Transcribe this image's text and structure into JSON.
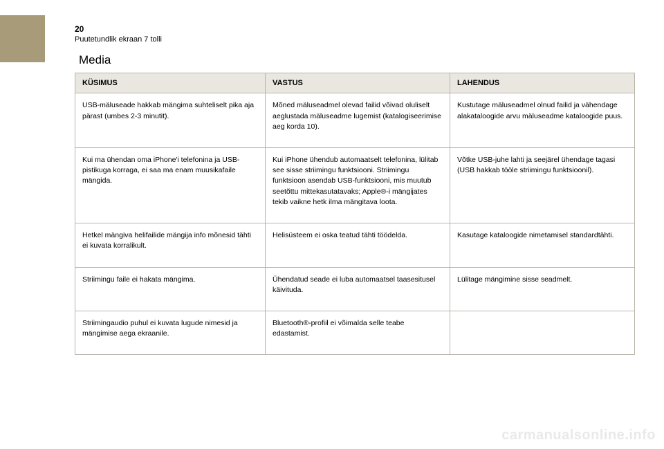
{
  "page": {
    "number": "20",
    "subtitle": "Puutetundlik ekraan 7 tolli",
    "section_title": "Media"
  },
  "table": {
    "columns": [
      "KÜSIMUS",
      "VASTUS",
      "LAHENDUS"
    ],
    "rows": [
      [
        "USB-mäluseade hakkab mängima suhteliselt pika aja pärast (umbes 2-3 minutit).",
        "Mõned mäluseadmel olevad failid võivad oluliselt aeglustada mäluseadme lugemist (katalogiseerimise aeg korda 10).",
        "Kustutage mäluseadmel olnud failid ja vähendage alakataloogide arvu mäluseadme kataloogide puus."
      ],
      [
        "Kui ma ühendan oma iPhone'i telefonina ja USB-pistikuga korraga, ei saa ma enam muusikafaile mängida.",
        "Kui iPhone ühendub automaatselt telefonina, lülitab see sisse striimingu funktsiooni. Striimingu funktsioon asendab USB-funktsiooni, mis muutub seetõttu mittekasutatavaks; Apple®-i mängijates tekib vaikne hetk ilma mängitava loota.",
        "Võtke USB-juhe lahti ja seejärel ühendage tagasi (USB hakkab tööle striimingu funktsioonil)."
      ],
      [
        "Hetkel mängiva helifailide mängija info mõnesid tähti ei kuvata korralikult.",
        "Helisüsteem ei oska teatud tähti töödelda.",
        "Kasutage kataloogide nimetamisel standardtähti."
      ],
      [
        "Striimingu faile ei hakata mängima.",
        "Ühendatud seade ei luba automaatsel taasesitusel käivituda.",
        "Lülitage mängimine sisse seadmelt."
      ],
      [
        "Striimingaudio puhul ei kuvata lugude nimesid ja mängimise aega ekraanile.",
        "Bluetooth®-profiil ei võimalda selle teabe edastamist.",
        ""
      ]
    ]
  },
  "watermark": "carmanualsonline.info",
  "style": {
    "tab_color": "#a89b79",
    "header_bg": "#e9e7e0",
    "border_color": "#b8b4a8",
    "text_color": "#000000",
    "background": "#ffffff",
    "watermark_color": "#e9e9e9"
  }
}
